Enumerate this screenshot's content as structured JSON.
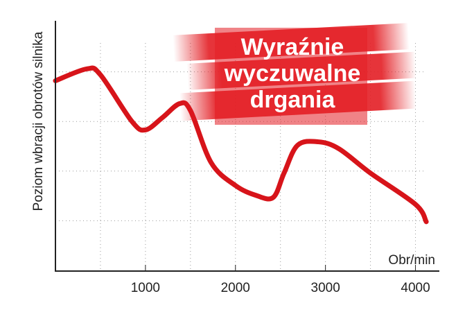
{
  "chart_data": {
    "type": "line",
    "y_label": "Poziom  wbracji obrotów silnika",
    "x_label": "Obr/min",
    "annotation": [
      "Wyraźnie",
      "wyczuwalne",
      "drgania"
    ],
    "x": [
      0,
      350,
      500,
      850,
      1000,
      1190,
      1380,
      1500,
      1730,
      2000,
      2230,
      2420,
      2540,
      2690,
      2920,
      3150,
      3500,
      4000,
      4120
    ],
    "series": [
      {
        "name": "Poziom wibracji",
        "color": "#d7141a",
        "values": [
          3.82,
          4.06,
          3.94,
          3.0,
          2.83,
          3.08,
          3.36,
          3.22,
          2.17,
          1.71,
          1.51,
          1.47,
          1.96,
          2.52,
          2.59,
          2.45,
          1.96,
          1.33,
          0.98
        ]
      }
    ],
    "xlim": [
      0,
      4250
    ],
    "ylim": [
      0,
      5
    ],
    "xticks": [
      1000,
      2000,
      3000,
      4000
    ],
    "xgrid": [
      500,
      1000,
      1500,
      2000,
      2500,
      3000,
      3500,
      4000
    ],
    "ygrid": [
      1,
      2,
      3,
      4
    ],
    "grid": true
  }
}
